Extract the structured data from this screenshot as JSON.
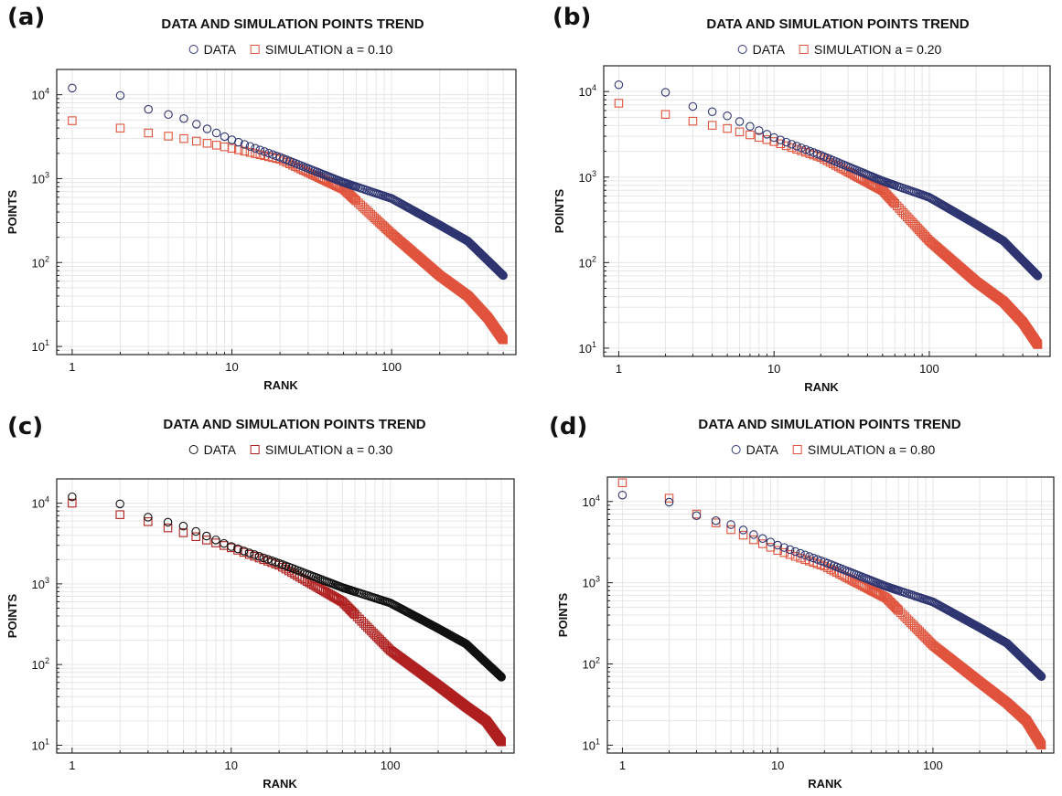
{
  "chart_data": [
    {
      "panel": "(a)",
      "type": "scatter",
      "title": "DATA AND SIMULATION POINTS TREND",
      "xlabel": "RANK",
      "ylabel": "POINTS",
      "xscale": "log",
      "yscale": "log",
      "xlim": [
        0.8,
        600
      ],
      "ylim": [
        8,
        20000
      ],
      "grid": true,
      "legend_placement": "top-center",
      "x_ticks": [
        "1",
        "10",
        "100"
      ],
      "y_ticks": [
        {
          "base": "10",
          "exp": "1"
        },
        {
          "base": "10",
          "exp": "2"
        },
        {
          "base": "10",
          "exp": "3"
        },
        {
          "base": "10",
          "exp": "4"
        }
      ],
      "series": [
        {
          "name": "DATA",
          "marker": "circle",
          "color": "#2e3570"
        },
        {
          "name": "SIMULATION a = 0.10",
          "marker": "square",
          "color": "#e0533c"
        }
      ],
      "data_points": [
        [
          1,
          12000
        ],
        [
          2,
          9800
        ],
        [
          3,
          6700
        ],
        [
          5,
          5200
        ],
        [
          10,
          2900
        ],
        [
          20,
          1800
        ],
        [
          50,
          900
        ],
        [
          100,
          580
        ],
        [
          200,
          280
        ],
        [
          300,
          180
        ],
        [
          500,
          70
        ]
      ],
      "sim_points": [
        [
          1,
          4900
        ],
        [
          2,
          4000
        ],
        [
          3,
          3500
        ],
        [
          5,
          3000
        ],
        [
          10,
          2300
        ],
        [
          20,
          1700
        ],
        [
          50,
          750
        ],
        [
          100,
          220
        ],
        [
          200,
          70
        ],
        [
          300,
          40
        ],
        [
          400,
          22
        ],
        [
          500,
          12
        ]
      ]
    },
    {
      "panel": "(b)",
      "type": "scatter",
      "title": "DATA AND SIMULATION POINTS TREND",
      "xlabel": "RANK",
      "ylabel": "POINTS",
      "xscale": "log",
      "yscale": "log",
      "xlim": [
        0.8,
        600
      ],
      "ylim": [
        8,
        20000
      ],
      "grid": true,
      "legend_placement": "top-center",
      "x_ticks": [
        "1",
        "10",
        "100"
      ],
      "y_ticks": [
        {
          "base": "10",
          "exp": "1"
        },
        {
          "base": "10",
          "exp": "2"
        },
        {
          "base": "10",
          "exp": "3"
        },
        {
          "base": "10",
          "exp": "4"
        }
      ],
      "series": [
        {
          "name": "DATA",
          "marker": "circle",
          "color": "#2e3570"
        },
        {
          "name": "SIMULATION a = 0.20",
          "marker": "square",
          "color": "#e0533c"
        }
      ],
      "data_points": [
        [
          1,
          12000
        ],
        [
          2,
          9800
        ],
        [
          3,
          6700
        ],
        [
          5,
          5200
        ],
        [
          10,
          2900
        ],
        [
          20,
          1800
        ],
        [
          50,
          900
        ],
        [
          100,
          580
        ],
        [
          200,
          280
        ],
        [
          300,
          180
        ],
        [
          500,
          70
        ]
      ],
      "sim_points": [
        [
          1,
          7300
        ],
        [
          2,
          5400
        ],
        [
          3,
          4500
        ],
        [
          5,
          3700
        ],
        [
          10,
          2600
        ],
        [
          20,
          1700
        ],
        [
          50,
          700
        ],
        [
          100,
          180
        ],
        [
          200,
          60
        ],
        [
          300,
          35
        ],
        [
          400,
          20
        ],
        [
          500,
          11
        ]
      ]
    },
    {
      "panel": "(c)",
      "type": "scatter",
      "title": "DATA AND SIMULATION POINTS TREND",
      "xlabel": "RANK",
      "ylabel": "POINTS",
      "xscale": "log",
      "yscale": "log",
      "xlim": [
        0.8,
        600
      ],
      "ylim": [
        8,
        20000
      ],
      "grid": true,
      "legend_placement": "top-center",
      "x_ticks": [
        "1",
        "10",
        "100"
      ],
      "y_ticks": [
        {
          "base": "10",
          "exp": "1"
        },
        {
          "base": "10",
          "exp": "2"
        },
        {
          "base": "10",
          "exp": "3"
        },
        {
          "base": "10",
          "exp": "4"
        }
      ],
      "series": [
        {
          "name": "DATA",
          "marker": "circle",
          "color": "#111111"
        },
        {
          "name": "SIMULATION a = 0.30",
          "marker": "square",
          "color": "#b02020"
        }
      ],
      "data_points": [
        [
          1,
          12000
        ],
        [
          2,
          9800
        ],
        [
          3,
          6700
        ],
        [
          5,
          5200
        ],
        [
          10,
          2900
        ],
        [
          20,
          1800
        ],
        [
          50,
          900
        ],
        [
          100,
          580
        ],
        [
          200,
          280
        ],
        [
          300,
          180
        ],
        [
          500,
          70
        ]
      ],
      "sim_points": [
        [
          1,
          10000
        ],
        [
          2,
          7200
        ],
        [
          3,
          5900
        ],
        [
          5,
          4300
        ],
        [
          10,
          2800
        ],
        [
          20,
          1700
        ],
        [
          50,
          600
        ],
        [
          100,
          150
        ],
        [
          200,
          55
        ],
        [
          300,
          30
        ],
        [
          400,
          20
        ],
        [
          500,
          11
        ]
      ]
    },
    {
      "panel": "(d)",
      "type": "scatter",
      "title": "DATA AND SIMULATION POINTS TREND",
      "xlabel": "RANK",
      "ylabel": "POINTS",
      "xscale": "log",
      "yscale": "log",
      "xlim": [
        0.8,
        600
      ],
      "ylim": [
        8,
        20000
      ],
      "grid": true,
      "legend_placement": "top-center",
      "x_ticks": [
        "1",
        "10",
        "100"
      ],
      "y_ticks": [
        {
          "base": "10",
          "exp": "1"
        },
        {
          "base": "10",
          "exp": "2"
        },
        {
          "base": "10",
          "exp": "3"
        },
        {
          "base": "10",
          "exp": "4"
        }
      ],
      "series": [
        {
          "name": "DATA",
          "marker": "circle",
          "color": "#2e3570"
        },
        {
          "name": "SIMULATION a = 0.80",
          "marker": "square",
          "color": "#e0533c"
        }
      ],
      "data_points": [
        [
          1,
          12000
        ],
        [
          2,
          9800
        ],
        [
          3,
          6700
        ],
        [
          5,
          5200
        ],
        [
          10,
          2900
        ],
        [
          20,
          1800
        ],
        [
          50,
          900
        ],
        [
          100,
          580
        ],
        [
          200,
          280
        ],
        [
          300,
          180
        ],
        [
          500,
          70
        ]
      ],
      "sim_points": [
        [
          1,
          17000
        ],
        [
          2,
          11000
        ],
        [
          3,
          7000
        ],
        [
          5,
          4500
        ],
        [
          10,
          2500
        ],
        [
          20,
          1600
        ],
        [
          50,
          650
        ],
        [
          100,
          170
        ],
        [
          200,
          60
        ],
        [
          300,
          33
        ],
        [
          400,
          20
        ],
        [
          500,
          10
        ]
      ]
    }
  ]
}
